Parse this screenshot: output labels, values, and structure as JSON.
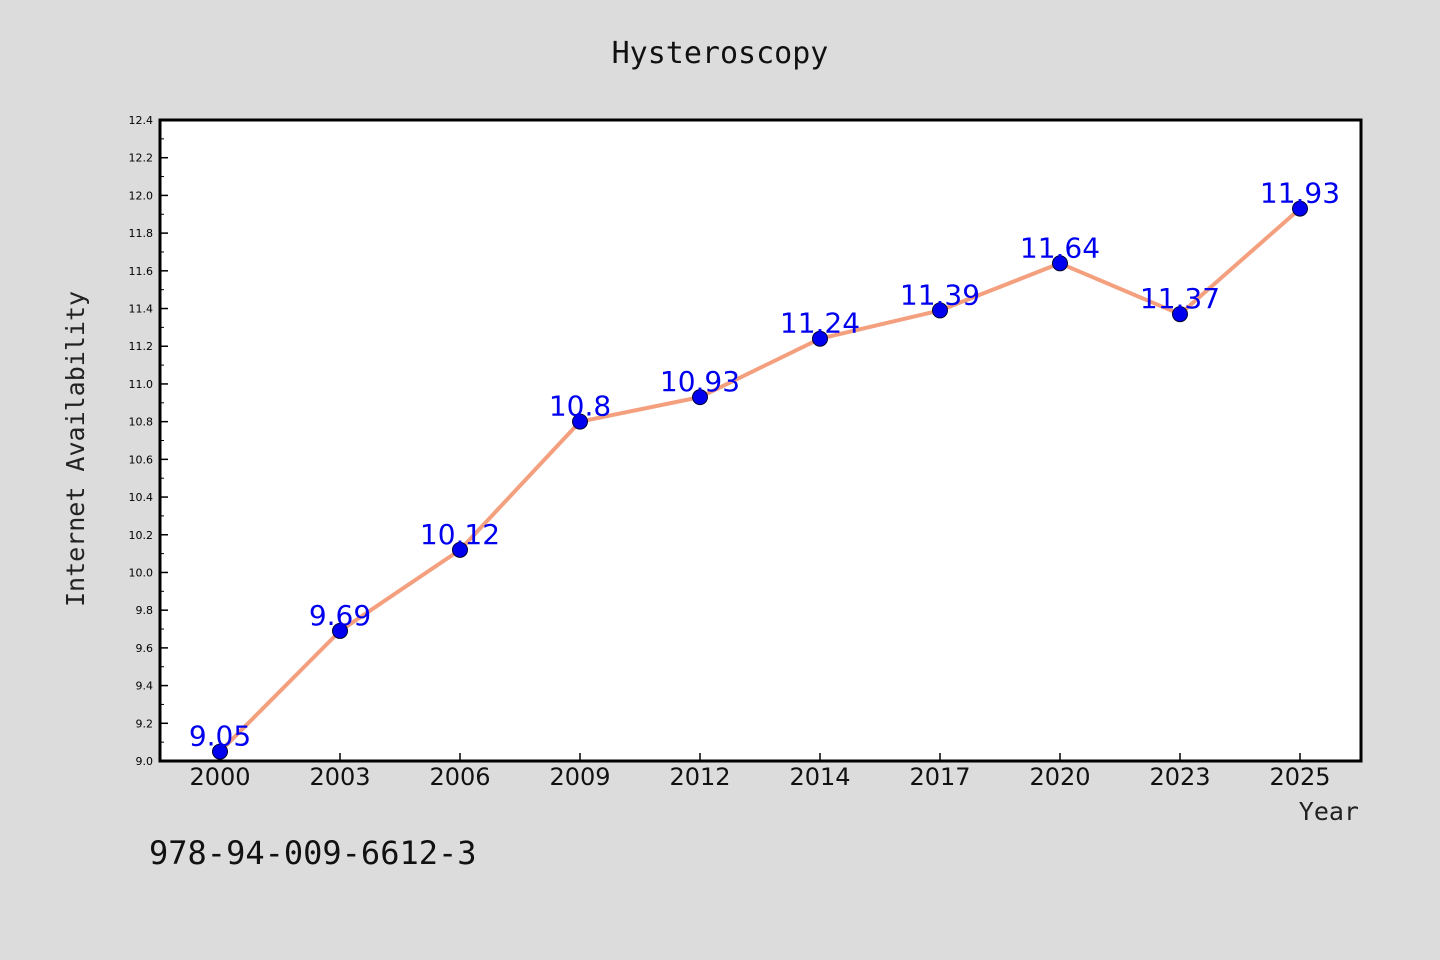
{
  "chart_data": {
    "type": "line",
    "title": "Hysteroscopy",
    "xlabel": "Year",
    "ylabel": "Internet Availability",
    "categories": [
      "2000",
      "2003",
      "2006",
      "2009",
      "2012",
      "2014",
      "2017",
      "2020",
      "2023",
      "2025"
    ],
    "series": [
      {
        "values": [
          9.05,
          9.69,
          10.12,
          10.8,
          10.93,
          11.24,
          11.39,
          11.64,
          11.37,
          11.93
        ],
        "labels": [
          "9.05",
          "9.69",
          "10.12",
          "10.8",
          "10.93",
          "11.24",
          "11.39",
          "11.64",
          "11.37",
          "11.93"
        ]
      }
    ],
    "ylim": [
      9.0,
      12.4
    ],
    "yticks": [
      "9.0",
      "9.2",
      "9.4",
      "9.6",
      "9.8",
      "10.0",
      "10.2",
      "10.4",
      "10.6",
      "10.8",
      "11.0",
      "11.2",
      "11.4",
      "11.6",
      "11.8",
      "12.0",
      "12.2",
      "12.4"
    ],
    "grid": false,
    "line_color": "#f4a07e",
    "marker_color": "#0000ee",
    "label_color": "#0000ee",
    "background_color": "#dcdcdc",
    "plot_background_color": "#ffffff"
  },
  "footnote": "978-94-009-6612-3"
}
